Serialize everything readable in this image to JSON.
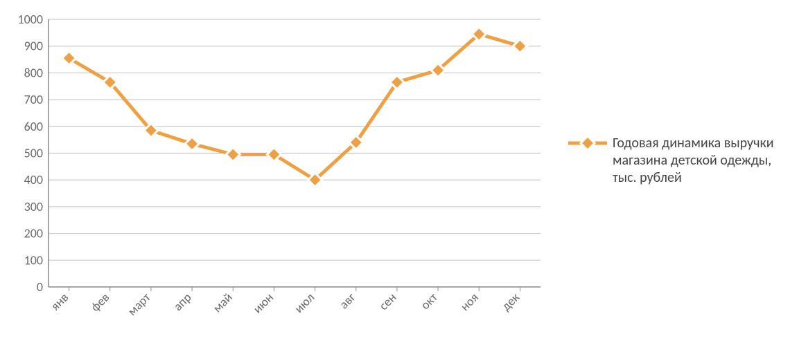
{
  "chart": {
    "type": "line-with-markers",
    "categories": [
      "янв",
      "фев",
      "март",
      "апр",
      "май",
      "июн",
      "июл",
      "авг",
      "сен",
      "окт",
      "ноя",
      "дек"
    ],
    "values": [
      855,
      765,
      585,
      535,
      495,
      495,
      400,
      540,
      765,
      810,
      945,
      900
    ],
    "ylim": [
      0,
      1000
    ],
    "ytick_step": 100,
    "background_color": "#ffffff",
    "plot_border_color": "#888888",
    "grid_color": "#bdbdbd",
    "line_color": "#eda147",
    "line_width": 5,
    "marker_style": "diamond",
    "marker_size": 20,
    "marker_fill": "#eda147",
    "marker_stroke": "#ffffff",
    "marker_stroke_width": 3,
    "axis_label_fontsize": 18,
    "xlabel_rotation_deg": -45,
    "legend_label": "Годовая динамика выручки магазина детской одежды, тыс. рублей",
    "legend_fontsize": 20,
    "legend_text_color": "#454545"
  }
}
